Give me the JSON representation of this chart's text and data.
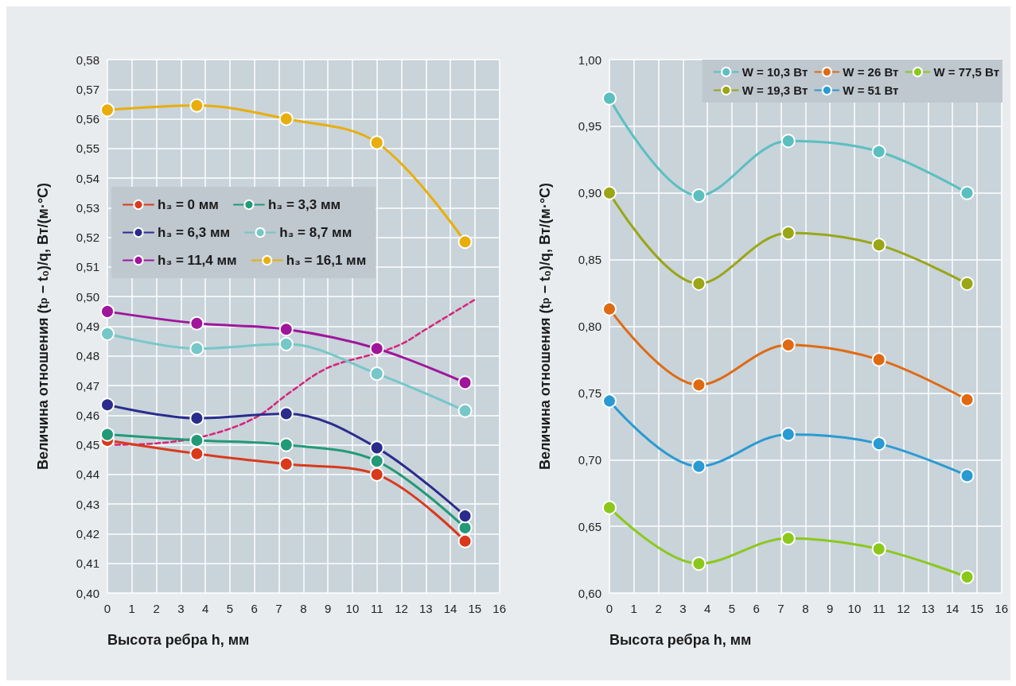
{
  "chart_data": [
    {
      "type": "line",
      "xlabel": "Высота ребра h, мм",
      "ylabel": "Величина отношения (t$_{р}$ − t₀)/q, Вт/(м·°C)",
      "x": [
        0,
        3.65,
        7.3,
        11,
        14.6
      ],
      "series": [
        {
          "name": "h₃ = 0 мм",
          "color": "#d93a1b",
          "values": [
            0.4515,
            0.447,
            0.4435,
            0.44,
            0.4175
          ]
        },
        {
          "name": "h₃ = 3,3 мм",
          "color": "#229a78",
          "values": [
            0.4535,
            0.4515,
            0.45,
            0.4445,
            0.422
          ]
        },
        {
          "name": "h₃ = 6,3 мм",
          "color": "#2a2c8c",
          "values": [
            0.4635,
            0.459,
            0.4605,
            0.449,
            0.426
          ]
        },
        {
          "name": "h₃ = 8,7 мм",
          "color": "#76c7c8",
          "values": [
            0.4875,
            0.4825,
            0.484,
            0.474,
            0.4615
          ]
        },
        {
          "name": "h₃ = 11,4 мм",
          "color": "#a0159b",
          "values": [
            0.495,
            0.491,
            0.489,
            0.4825,
            0.471
          ]
        },
        {
          "name": "h₃ = 16,1 мм",
          "color": "#e8ae0b",
          "values": [
            0.563,
            0.5645,
            0.56,
            0.552,
            0.5185
          ]
        },
        {
          "color": "#d6247a",
          "line_style": "dashed",
          "marker": "none",
          "x": [
            0,
            2,
            4,
            6,
            7.5,
            9,
            11,
            12,
            13,
            14,
            15
          ],
          "values": [
            0.45,
            0.4505,
            0.453,
            0.459,
            0.468,
            0.476,
            0.481,
            0.484,
            0.489,
            0.494,
            0.499
          ]
        }
      ],
      "xlim": [
        0,
        16
      ],
      "xticks": [
        0,
        1,
        2,
        3,
        4,
        5,
        6,
        7,
        8,
        9,
        10,
        11,
        12,
        13,
        14,
        15,
        16
      ],
      "ylim": [
        0.4,
        0.58
      ],
      "yticks": [
        {
          "value": 0.4,
          "label": "0,40"
        },
        {
          "value": 0.41,
          "label": "0,41"
        },
        {
          "value": 0.42,
          "label": "0,42"
        },
        {
          "value": 0.43,
          "label": "0,43"
        },
        {
          "value": 0.44,
          "label": "0,44"
        },
        {
          "value": 0.45,
          "label": "0,45"
        },
        {
          "value": 0.46,
          "label": "0,46"
        },
        {
          "value": 0.47,
          "label": "0,47"
        },
        {
          "value": 0.48,
          "label": "0,48"
        },
        {
          "value": 0.49,
          "label": "0,49"
        },
        {
          "value": 0.5,
          "label": "0,50"
        },
        {
          "value": 0.51,
          "label": "0,51"
        },
        {
          "value": 0.52,
          "label": "0,52"
        },
        {
          "value": 0.53,
          "label": "0,53"
        },
        {
          "value": 0.54,
          "label": "0,54"
        },
        {
          "value": 0.55,
          "label": "0,55"
        },
        {
          "value": 0.56,
          "label": "0,56"
        },
        {
          "value": 0.57,
          "label": "0,57"
        },
        {
          "value": 0.58,
          "label": "0,58"
        }
      ],
      "grid": true,
      "legend": "left",
      "marker": "circle",
      "line_style": "solid"
    },
    {
      "type": "line",
      "xlabel": "Высота ребра h, мм",
      "ylabel": "Величина отношения (t$_{р}$ − t₀)/q, Вт/(м·°C)",
      "x": [
        0,
        3.65,
        7.3,
        11,
        14.6
      ],
      "series": [
        {
          "name": "W = 10,3 Вт",
          "color": "#5bbfc0",
          "values": [
            0.971,
            0.898,
            0.939,
            0.931,
            0.9
          ]
        },
        {
          "name": "W = 26 Вт",
          "color": "#e06a12",
          "values": [
            0.813,
            0.756,
            0.786,
            0.775,
            0.745
          ]
        },
        {
          "name": "W = 77,5 Вт",
          "color": "#8cc81a",
          "values": [
            0.664,
            0.622,
            0.641,
            0.633,
            0.612
          ]
        },
        {
          "name": "W = 19,3 Вт",
          "color": "#9aa616",
          "values": [
            0.9,
            0.832,
            0.87,
            0.861,
            0.832
          ]
        },
        {
          "name": "W = 51 Вт",
          "color": "#2a9ad2",
          "values": [
            0.744,
            0.695,
            0.719,
            0.712,
            0.688
          ]
        }
      ],
      "xlim": [
        0,
        16
      ],
      "xticks": [
        0,
        1,
        2,
        3,
        4,
        5,
        6,
        7,
        8,
        9,
        10,
        11,
        12,
        13,
        14,
        15,
        16
      ],
      "ylim": [
        0.6,
        1.0
      ],
      "yticks": [
        {
          "value": 0.6,
          "label": "0,60"
        },
        {
          "value": 0.65,
          "label": "0,65"
        },
        {
          "value": 0.7,
          "label": "0,70"
        },
        {
          "value": 0.75,
          "label": "0,75"
        },
        {
          "value": 0.8,
          "label": "0,80"
        },
        {
          "value": 0.85,
          "label": "0,85"
        },
        {
          "value": 0.9,
          "label": "0,90"
        },
        {
          "value": 0.95,
          "label": "0,95"
        },
        {
          "value": 1.0,
          "label": "1,00"
        }
      ],
      "grid": true,
      "legend": "top right",
      "marker": "circle",
      "line_style": "solid"
    }
  ]
}
